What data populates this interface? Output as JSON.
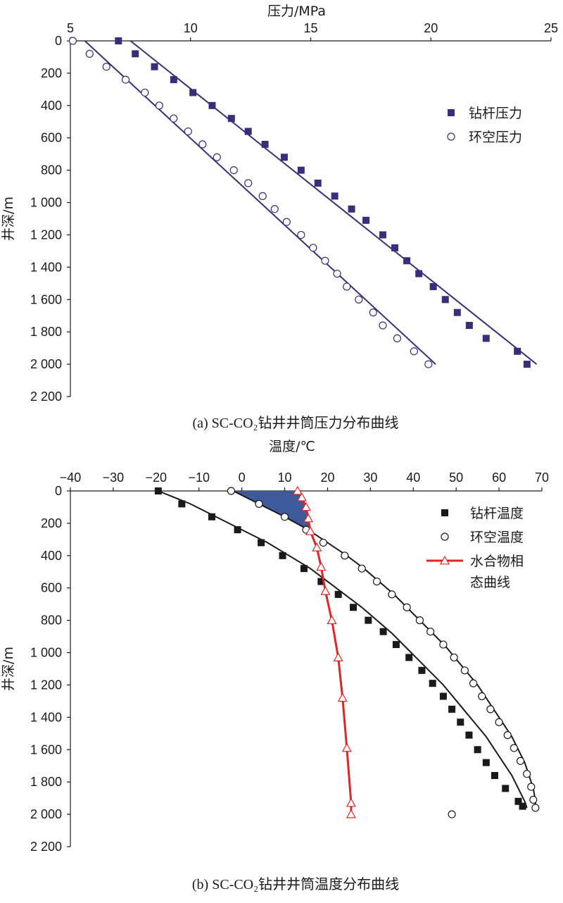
{
  "chart_data": [
    {
      "type": "scatter",
      "caption": "(a)  SC-CO₂钻井井筒压力分布曲线",
      "xlabel": "压力/MPa",
      "ylabel": "井深/m",
      "x_axis_position": "top",
      "y_inverted": true,
      "xlim": [
        5,
        25
      ],
      "ylim": [
        0,
        2200
      ],
      "x_ticks": [
        5,
        10,
        15,
        20,
        25
      ],
      "x_tick_labels": [
        "5",
        "10",
        "15",
        "20",
        "25"
      ],
      "y_ticks": [
        0,
        200,
        400,
        600,
        800,
        1000,
        1200,
        1400,
        1600,
        1800,
        2000,
        2200
      ],
      "y_tick_labels": [
        "0",
        "200",
        "400",
        "600",
        "800",
        "1 000",
        "1 200",
        "1 400",
        "1 600",
        "1 800",
        "2 000",
        "2 200"
      ],
      "legend_position": "right",
      "series": [
        {
          "name": "钻杆压力",
          "marker": "filled-square",
          "color": "#3a2d7a",
          "points": [
            [
              7.0,
              0
            ],
            [
              7.7,
              80
            ],
            [
              8.5,
              160
            ],
            [
              9.3,
              240
            ],
            [
              10.1,
              320
            ],
            [
              10.9,
              400
            ],
            [
              11.7,
              480
            ],
            [
              12.4,
              560
            ],
            [
              13.1,
              640
            ],
            [
              13.9,
              720
            ],
            [
              14.6,
              800
            ],
            [
              15.3,
              880
            ],
            [
              16.0,
              960
            ],
            [
              16.7,
              1040
            ],
            [
              17.3,
              1110
            ],
            [
              18.0,
              1200
            ],
            [
              18.5,
              1280
            ],
            [
              19.0,
              1360
            ],
            [
              19.5,
              1440
            ],
            [
              20.1,
              1520
            ],
            [
              20.6,
              1600
            ],
            [
              21.1,
              1680
            ],
            [
              21.6,
              1760
            ],
            [
              22.3,
              1840
            ],
            [
              23.6,
              1920
            ],
            [
              24.0,
              2000
            ]
          ]
        },
        {
          "name": "环空压力",
          "marker": "open-circle",
          "color": "#3a2d7a",
          "points": [
            [
              5.1,
              0
            ],
            [
              5.8,
              80
            ],
            [
              6.5,
              160
            ],
            [
              7.3,
              240
            ],
            [
              8.1,
              320
            ],
            [
              8.7,
              400
            ],
            [
              9.3,
              480
            ],
            [
              9.9,
              560
            ],
            [
              10.5,
              640
            ],
            [
              11.1,
              720
            ],
            [
              11.8,
              800
            ],
            [
              12.4,
              880
            ],
            [
              13.0,
              960
            ],
            [
              13.5,
              1040
            ],
            [
              14.0,
              1120
            ],
            [
              14.6,
              1200
            ],
            [
              15.1,
              1280
            ],
            [
              15.6,
              1360
            ],
            [
              16.1,
              1440
            ],
            [
              16.5,
              1520
            ],
            [
              17.0,
              1600
            ],
            [
              17.6,
              1680
            ],
            [
              18.0,
              1760
            ],
            [
              18.6,
              1840
            ],
            [
              19.3,
              1920
            ],
            [
              19.9,
              2000
            ]
          ]
        }
      ],
      "fit_lines": [
        {
          "series": "钻杆压力",
          "color": "#3a2d7a",
          "points": [
            [
              7.5,
              0
            ],
            [
              24.4,
              2000
            ]
          ]
        },
        {
          "series": "环空压力",
          "color": "#3a2d7a",
          "points": [
            [
              5.6,
              0
            ],
            [
              20.2,
              2000
            ]
          ]
        }
      ]
    },
    {
      "type": "scatter",
      "caption": "(b)  SC-CO₂钻井井筒温度分布曲线",
      "xlabel": "温度/℃",
      "ylabel": "井深/m",
      "x_axis_position": "top",
      "y_inverted": true,
      "xlim": [
        -40,
        70
      ],
      "ylim": [
        0,
        2200
      ],
      "x_ticks": [
        -40,
        -30,
        -20,
        -10,
        0,
        10,
        20,
        30,
        40,
        50,
        60,
        70
      ],
      "x_tick_labels": [
        "−40",
        "−30",
        "−20",
        "−10",
        "0",
        "10",
        "20",
        "30",
        "40",
        "50",
        "60",
        "70"
      ],
      "y_ticks": [
        0,
        200,
        400,
        600,
        800,
        1000,
        1200,
        1400,
        1600,
        1800,
        2000,
        2200
      ],
      "y_tick_labels": [
        "0",
        "200",
        "400",
        "600",
        "800",
        "1 000",
        "1 200",
        "1 400",
        "1 600",
        "1 800",
        "2 000",
        "2 200"
      ],
      "legend_position": "top-right",
      "shaded_region_color": "#3f5a9a",
      "series": [
        {
          "name": "钻杆温度",
          "marker": "filled-square",
          "color": "#1a1a1a",
          "points": [
            [
              -19.5,
              0
            ],
            [
              -14,
              80
            ],
            [
              -7,
              160
            ],
            [
              -1,
              240
            ],
            [
              4.5,
              320
            ],
            [
              9.5,
              400
            ],
            [
              14.5,
              480
            ],
            [
              18.5,
              560
            ],
            [
              22.5,
              640
            ],
            [
              26,
              720
            ],
            [
              29.5,
              800
            ],
            [
              33,
              870
            ],
            [
              36,
              950
            ],
            [
              39,
              1030
            ],
            [
              42,
              1110
            ],
            [
              44.5,
              1190
            ],
            [
              47,
              1270
            ],
            [
              49,
              1350
            ],
            [
              51,
              1430
            ],
            [
              53,
              1510
            ],
            [
              55,
              1600
            ],
            [
              57,
              1680
            ],
            [
              59,
              1760
            ],
            [
              61.5,
              1840
            ],
            [
              64.5,
              1920
            ],
            [
              65.5,
              1950
            ]
          ]
        },
        {
          "name": "环空温度",
          "marker": "open-circle",
          "color": "#1a1a1a",
          "points": [
            [
              -2.5,
              0
            ],
            [
              4,
              80
            ],
            [
              10,
              160
            ],
            [
              15,
              240
            ],
            [
              19,
              320
            ],
            [
              24,
              400
            ],
            [
              28,
              480
            ],
            [
              31.5,
              560
            ],
            [
              35,
              640
            ],
            [
              38.5,
              720
            ],
            [
              41.5,
              800
            ],
            [
              44,
              870
            ],
            [
              47,
              950
            ],
            [
              49.5,
              1030
            ],
            [
              52,
              1110
            ],
            [
              54,
              1190
            ],
            [
              56,
              1270
            ],
            [
              58,
              1350
            ],
            [
              60,
              1430
            ],
            [
              62,
              1510
            ],
            [
              63.5,
              1590
            ],
            [
              65,
              1670
            ],
            [
              66.5,
              1750
            ],
            [
              67.5,
              1830
            ],
            [
              68,
              1910
            ],
            [
              68.5,
              1960
            ],
            [
              49,
              2000
            ]
          ]
        },
        {
          "name": "水合物相态曲线",
          "marker": "open-triangle",
          "color": "#e02424",
          "points": [
            [
              13,
              0
            ],
            [
              14,
              40
            ],
            [
              15,
              100
            ],
            [
              15.5,
              170
            ],
            [
              16,
              250
            ],
            [
              17.5,
              350
            ],
            [
              18.5,
              470
            ],
            [
              19.5,
              620
            ],
            [
              21,
              800
            ],
            [
              22.5,
              1030
            ],
            [
              23.5,
              1280
            ],
            [
              24.5,
              1590
            ],
            [
              25.5,
              1930
            ],
            [
              25.5,
              2000
            ]
          ]
        }
      ],
      "fit_lines": [
        {
          "series": "钻杆温度",
          "color": "#1a1a1a",
          "points": [
            [
              -19.5,
              0
            ],
            [
              -12,
              80
            ],
            [
              -6,
              160
            ],
            [
              0,
              240
            ],
            [
              6,
              320
            ],
            [
              11,
              400
            ],
            [
              16,
              480
            ],
            [
              20,
              560
            ],
            [
              24,
              640
            ],
            [
              28,
              720
            ],
            [
              31.5,
              800
            ],
            [
              35,
              880
            ],
            [
              38,
              960
            ],
            [
              41,
              1040
            ],
            [
              44,
              1120
            ],
            [
              47,
              1200
            ],
            [
              49.5,
              1280
            ],
            [
              52,
              1360
            ],
            [
              54.5,
              1440
            ],
            [
              57,
              1520
            ],
            [
              59,
              1600
            ],
            [
              61,
              1680
            ],
            [
              63,
              1760
            ],
            [
              64.5,
              1840
            ],
            [
              66,
              1920
            ],
            [
              66.5,
              1960
            ]
          ]
        },
        {
          "series": "环空温度",
          "color": "#1a1a1a",
          "points": [
            [
              -2,
              0
            ],
            [
              4,
              80
            ],
            [
              10,
              160
            ],
            [
              15.5,
              240
            ],
            [
              20,
              320
            ],
            [
              24.5,
              400
            ],
            [
              28.5,
              480
            ],
            [
              32,
              560
            ],
            [
              35.5,
              640
            ],
            [
              38.5,
              720
            ],
            [
              41.5,
              800
            ],
            [
              44.5,
              880
            ],
            [
              47.5,
              960
            ],
            [
              50,
              1040
            ],
            [
              52.5,
              1120
            ],
            [
              55,
              1200
            ],
            [
              57,
              1280
            ],
            [
              59,
              1360
            ],
            [
              61,
              1440
            ],
            [
              63,
              1520
            ],
            [
              64.5,
              1600
            ],
            [
              66,
              1680
            ],
            [
              67,
              1760
            ],
            [
              68,
              1840
            ],
            [
              68.5,
              1920
            ],
            [
              68.5,
              1960
            ]
          ]
        }
      ]
    }
  ]
}
